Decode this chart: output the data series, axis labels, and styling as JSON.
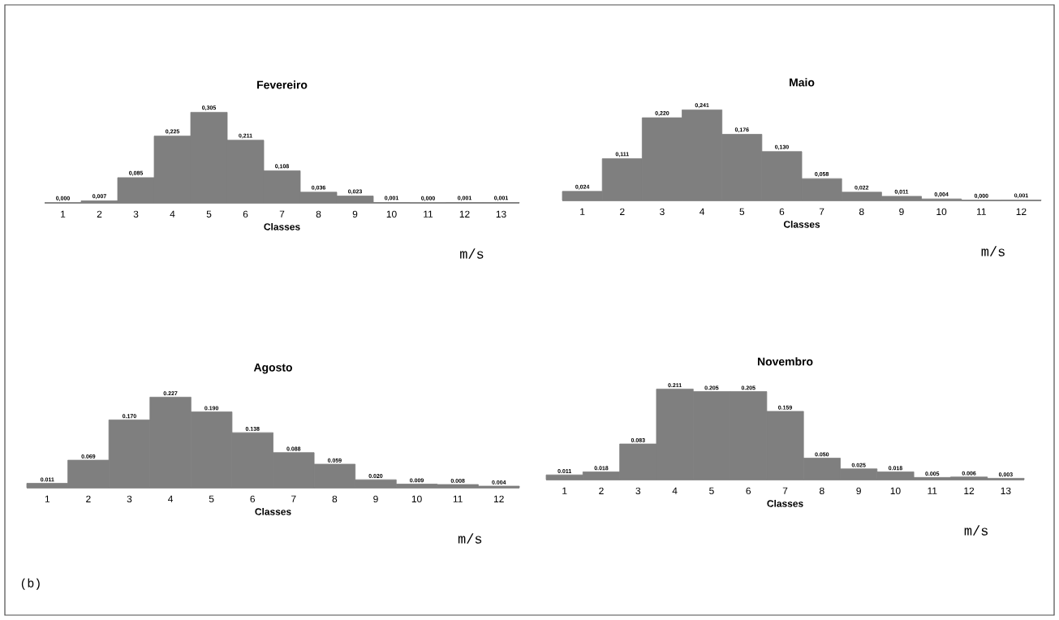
{
  "chart_data": [
    {
      "type": "bar",
      "title": "Fevereiro",
      "xlabel": "Classes",
      "annotations": [
        "m/s"
      ],
      "color": "#7f7f7f",
      "categories": [
        "1",
        "2",
        "3",
        "4",
        "5",
        "6",
        "7",
        "8",
        "9",
        "10",
        "11",
        "12",
        "13"
      ],
      "values": [
        0.0,
        0.007,
        0.085,
        0.225,
        0.305,
        0.211,
        0.108,
        0.036,
        0.023,
        0.001,
        0.0,
        0.001,
        0.001
      ],
      "value_labels": [
        "0,000",
        "0,007",
        "0,085",
        "0,225",
        "0,305",
        "0,211",
        "0,108",
        "0,036",
        "0,023",
        "0,001",
        "0,000",
        "0,001",
        "0,001"
      ]
    },
    {
      "type": "bar",
      "title": "Maio",
      "xlabel": "Classes",
      "annotations": [
        "m/s"
      ],
      "color": "#7f7f7f",
      "categories": [
        "1",
        "2",
        "3",
        "4",
        "5",
        "6",
        "7",
        "8",
        "9",
        "10",
        "11",
        "12"
      ],
      "values": [
        0.024,
        0.111,
        0.22,
        0.241,
        0.176,
        0.13,
        0.058,
        0.022,
        0.011,
        0.004,
        0.0,
        0.001
      ],
      "value_labels": [
        "0,024",
        "0,111",
        "0,220",
        "0,241",
        "0,176",
        "0,130",
        "0,058",
        "0,022",
        "0,011",
        "0,004",
        "0,000",
        "0,001"
      ]
    },
    {
      "type": "bar",
      "title": "Agosto",
      "xlabel": "Classes",
      "annotations": [
        "m/s",
        "(b)"
      ],
      "color": "#7f7f7f",
      "categories": [
        "1",
        "2",
        "3",
        "4",
        "5",
        "6",
        "7",
        "8",
        "9",
        "10",
        "11",
        "12"
      ],
      "values": [
        0.011,
        0.069,
        0.17,
        0.227,
        0.19,
        0.138,
        0.088,
        0.059,
        0.02,
        0.009,
        0.008,
        0.004
      ],
      "value_labels": [
        "0.011",
        "0.069",
        "0.170",
        "0.227",
        "0.190",
        "0.138",
        "0.088",
        "0.059",
        "0.020",
        "0.009",
        "0.008",
        "0.004"
      ]
    },
    {
      "type": "bar",
      "title": "Novembro",
      "xlabel": "Classes",
      "annotations": [
        "m/s"
      ],
      "color": "#7f7f7f",
      "categories": [
        "1",
        "2",
        "3",
        "4",
        "5",
        "6",
        "7",
        "8",
        "9",
        "10",
        "11",
        "12",
        "13"
      ],
      "values": [
        0.011,
        0.018,
        0.083,
        0.211,
        0.205,
        0.205,
        0.159,
        0.05,
        0.025,
        0.018,
        0.005,
        0.006,
        0.003
      ],
      "value_labels": [
        "0.011",
        "0.018",
        "0.083",
        "0.211",
        "0.205",
        "0.205",
        "0.159",
        "0.050",
        "0.025",
        "0.018",
        "0.005",
        "0.006",
        "0.003"
      ]
    }
  ]
}
